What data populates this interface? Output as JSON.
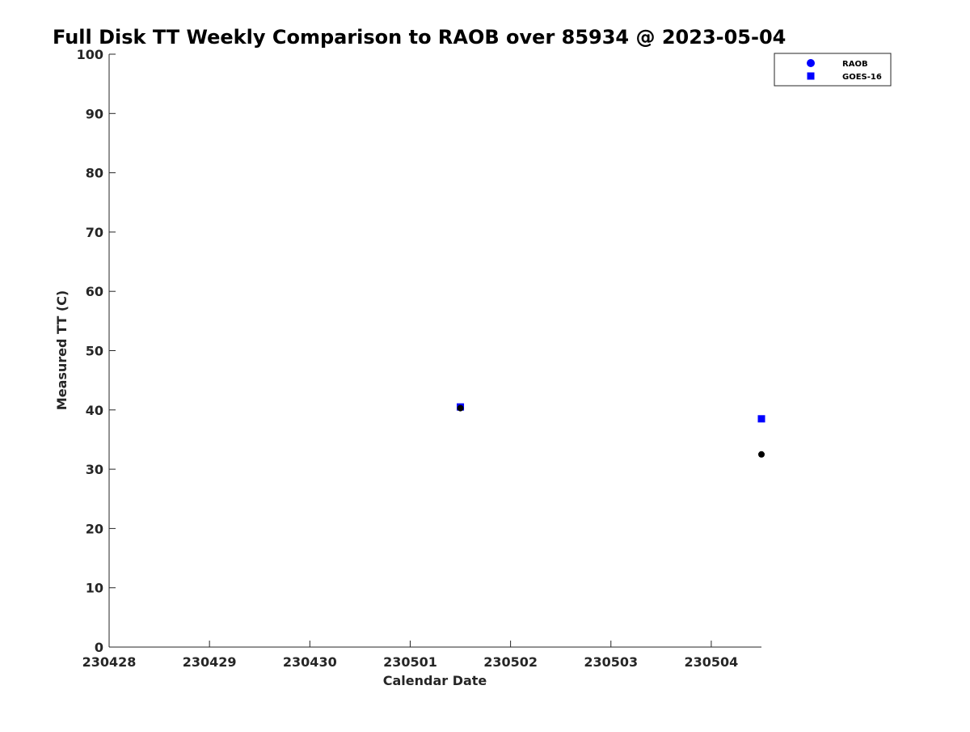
{
  "chart_data": {
    "type": "scatter",
    "title": "Full Disk TT Weekly Comparison to RAOB over 85934 @ 2023-05-04",
    "xlabel": "Calendar Date",
    "ylabel": "Measured TT (C)",
    "x_tick_labels": [
      "230428",
      "230429",
      "230430",
      "230501",
      "230502",
      "230503",
      "230504"
    ],
    "x_tick_values": [
      0,
      1,
      2,
      3,
      4,
      5,
      6
    ],
    "xlim": [
      0,
      6.5
    ],
    "ylim": [
      0,
      100
    ],
    "y_ticks": [
      0,
      10,
      20,
      30,
      40,
      50,
      60,
      70,
      80,
      90,
      100
    ],
    "grid": false,
    "legend_position": "top-right",
    "legend": [
      {
        "label": "RAOB",
        "marker": "circle",
        "color": "#0000ff"
      },
      {
        "label": "GOES-16",
        "marker": "square",
        "color": "#0000ff"
      }
    ],
    "series": [
      {
        "name": "RAOB",
        "marker": "circle",
        "color": "#000000",
        "points": [
          {
            "x": 3.5,
            "y": 40.3
          },
          {
            "x": 6.5,
            "y": 32.5
          }
        ]
      },
      {
        "name": "GOES-16",
        "marker": "square",
        "color": "#0000ff",
        "points": [
          {
            "x": 3.5,
            "y": 40.5
          },
          {
            "x": 6.5,
            "y": 38.5
          }
        ]
      }
    ]
  }
}
